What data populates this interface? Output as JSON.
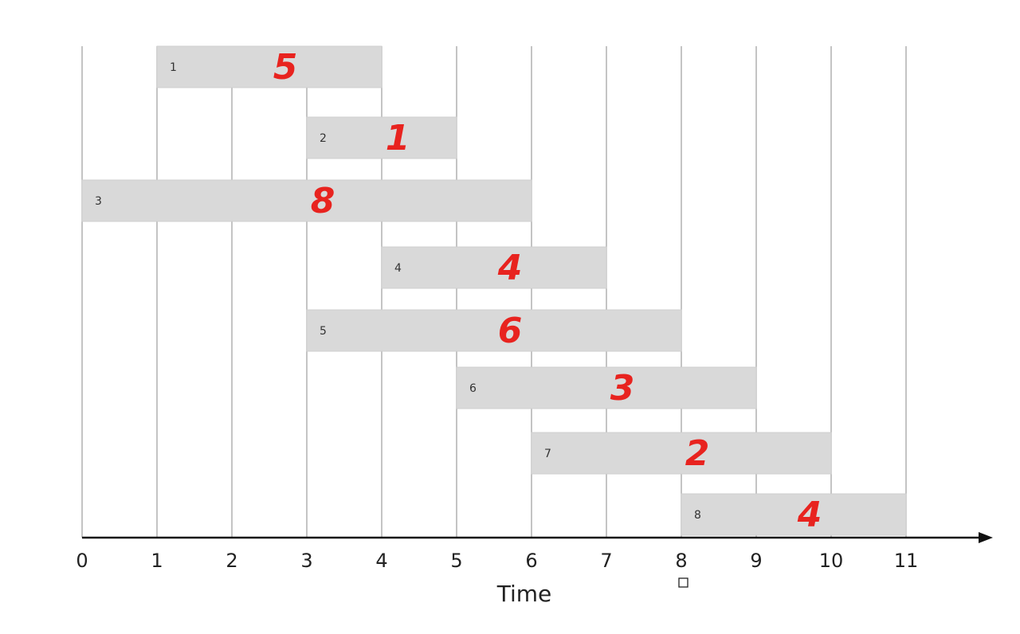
{
  "axis": {
    "title": "Time",
    "ticks": [
      "0",
      "1",
      "2",
      "3",
      "4",
      "5",
      "6",
      "7",
      "8",
      "9",
      "10",
      "11"
    ]
  },
  "colors": {
    "bar_fill": "#d9d9d9",
    "bar_stroke": "#cfcfcf",
    "weight_text": "#e8231f",
    "gridline": "#b0b0b0",
    "axis": "#111111"
  },
  "jobs": [
    {
      "id": "1",
      "start": 1,
      "end": 4,
      "weight": "5"
    },
    {
      "id": "2",
      "start": 3,
      "end": 5,
      "weight": "1"
    },
    {
      "id": "3",
      "start": 0,
      "end": 6,
      "weight": "8"
    },
    {
      "id": "4",
      "start": 4,
      "end": 7,
      "weight": "4"
    },
    {
      "id": "5",
      "start": 3,
      "end": 8,
      "weight": "6"
    },
    {
      "id": "6",
      "start": 5,
      "end": 9,
      "weight": "3"
    },
    {
      "id": "7",
      "start": 6,
      "end": 10,
      "weight": "2"
    },
    {
      "id": "8",
      "start": 8,
      "end": 11,
      "weight": "4"
    }
  ]
}
